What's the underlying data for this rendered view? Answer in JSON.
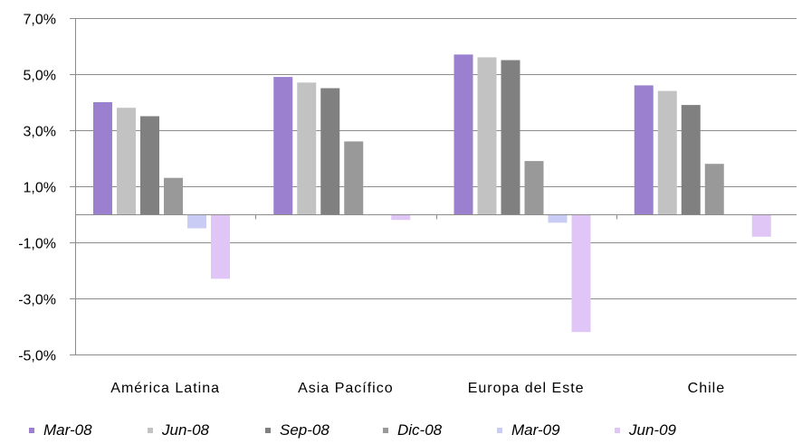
{
  "chart_data": {
    "type": "bar",
    "categories": [
      "América Latina",
      "Asia Pacífico",
      "Europa del Este",
      "Chile"
    ],
    "series": [
      {
        "name": "Mar-08",
        "color": "#9b80cf",
        "values": [
          4.0,
          4.9,
          5.7,
          4.6
        ]
      },
      {
        "name": "Jun-08",
        "color": "#c2c2c2",
        "values": [
          3.8,
          4.7,
          5.6,
          4.4
        ]
      },
      {
        "name": "Sep-08",
        "color": "#808080",
        "values": [
          3.5,
          4.5,
          5.5,
          3.9
        ]
      },
      {
        "name": "Dic-08",
        "color": "#999999",
        "values": [
          1.3,
          2.6,
          1.9,
          1.8
        ]
      },
      {
        "name": "Mar-09",
        "color": "#c9cdf6",
        "values": [
          -0.5,
          0.0,
          -0.3,
          0.0
        ]
      },
      {
        "name": "Jun-09",
        "color": "#dfc6f7",
        "values": [
          -2.3,
          -0.2,
          -4.2,
          -0.8
        ]
      }
    ],
    "yticks": [
      7.0,
      5.0,
      3.0,
      1.0,
      -1.0,
      -3.0,
      -5.0
    ],
    "ytick_labels": [
      "7,0%",
      "5,0%",
      "3,0%",
      "1,0%",
      "-1,0%",
      "-3,0%",
      "-5,0%"
    ],
    "ylim": [
      -5.0,
      7.0
    ],
    "grid": true,
    "legend_position": "bottom"
  }
}
